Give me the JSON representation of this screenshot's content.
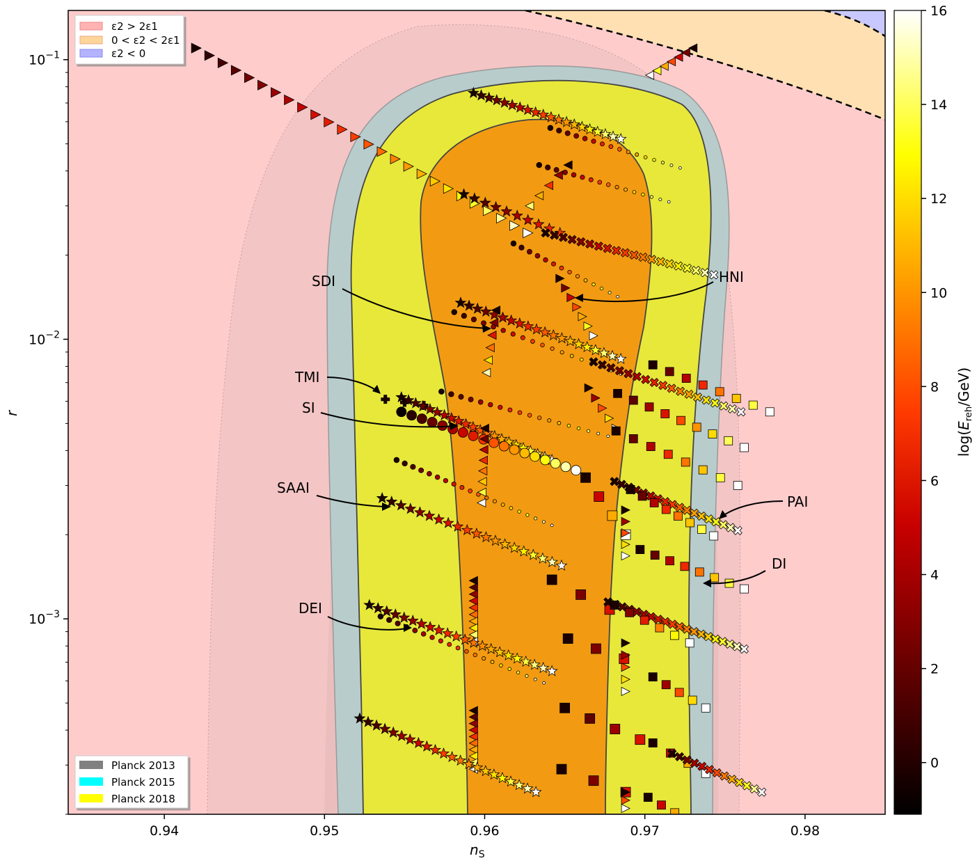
{
  "chart_data": {
    "type": "scatter",
    "xlabel": "n_S",
    "ylabel": "r",
    "xlim": [
      0.934,
      0.985
    ],
    "ylim": [
      0.0002,
      0.15
    ],
    "yscale": "log",
    "xticks": [
      "0.94",
      "0.95",
      "0.96",
      "0.97",
      "0.98"
    ],
    "xtick_values": [
      0.94,
      0.95,
      0.96,
      0.97,
      0.98
    ],
    "yticks": [
      "10^-3",
      "10^-2",
      "10^-1"
    ],
    "ytick_values": [
      0.001,
      0.01,
      0.1
    ],
    "colorbar": {
      "label": "log(E_reh/GeV)",
      "range": [
        -1.1,
        16
      ],
      "ticks": [
        "0",
        "2",
        "4",
        "6",
        "8",
        "10",
        "12",
        "14",
        "16"
      ],
      "tick_values": [
        0,
        2,
        4,
        6,
        8,
        10,
        12,
        14,
        16
      ]
    },
    "region_legend": [
      {
        "label": "ε2 > 2ε1",
        "color": "#ffb3b3"
      },
      {
        "label": "0 < ε2 < 2ε1",
        "color": "#ffd699"
      },
      {
        "label": "ε2 < 0",
        "color": "#b3b3ff"
      }
    ],
    "planck_legend": [
      {
        "label": "Planck 2013",
        "color": "#808080"
      },
      {
        "label": "Planck 2015",
        "color": "#00ffff"
      },
      {
        "label": "Planck 2018",
        "color": "#ffff00"
      }
    ],
    "models": [
      {
        "name": "HNI",
        "marker": "triangle-right",
        "points": [
          [
            0.942,
            0.11
          ],
          [
            0.9627,
            0.024
          ]
        ]
      },
      {
        "name": "SDI",
        "marker": "star",
        "points": [
          [
            0.9585,
            0.0135
          ],
          [
            0.9685,
            0.0085
          ]
        ]
      },
      {
        "name": "TMI",
        "marker": "plus",
        "points": [
          [
            0.9538,
            0.0061
          ],
          [
            0.9627,
            0.0046
          ]
        ]
      },
      {
        "name": "SI",
        "marker": "circle",
        "points": [
          [
            0.9548,
            0.0055
          ],
          [
            0.9657,
            0.0034
          ]
        ]
      },
      {
        "name": "SAAI",
        "marker": "star",
        "points": [
          [
            0.9536,
            0.0027
          ],
          [
            0.9648,
            0.00155
          ]
        ]
      },
      {
        "name": "DEI",
        "marker": "star",
        "points": [
          [
            0.9528,
            0.00112
          ],
          [
            0.9642,
            0.00065
          ]
        ]
      },
      {
        "name": "PAI",
        "marker": "x",
        "points": [
          [
            0.9681,
            0.0031
          ],
          [
            0.9758,
            0.00207
          ]
        ]
      },
      {
        "name": "DI",
        "marker": "square",
        "points": [
          [
            0.9677,
            0.00115
          ],
          [
            0.9762,
            0.0008
          ]
        ]
      }
    ],
    "annotations": [
      {
        "text": "SDI"
      },
      {
        "text": "HNI"
      },
      {
        "text": "TMI"
      },
      {
        "text": "SI"
      },
      {
        "text": "SAAI"
      },
      {
        "text": "PAI"
      },
      {
        "text": "DI"
      },
      {
        "text": "DEI"
      }
    ]
  }
}
